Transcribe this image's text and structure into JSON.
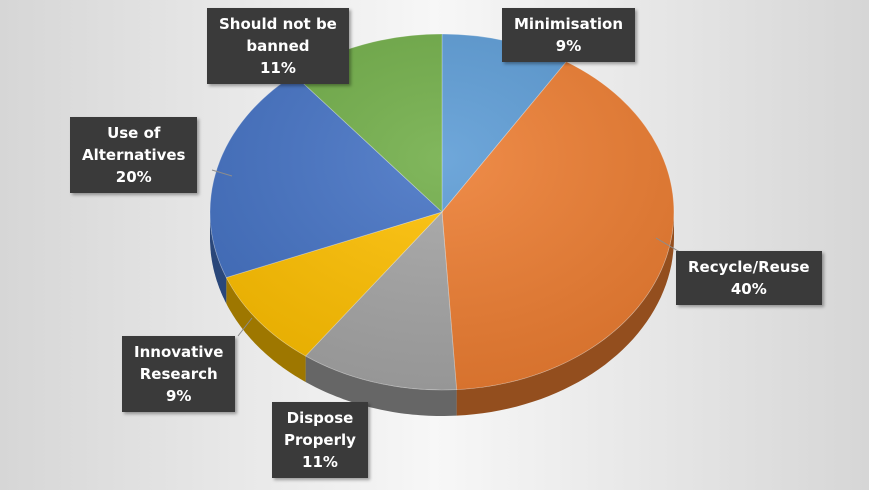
{
  "chart_data": {
    "type": "pie",
    "title": "",
    "colors": {
      "Minimisation": "#5b9bd5",
      "Recycle/Reuse": "#ed7d31",
      "Dispose Properly": "#a5a5a5",
      "Innovative Research": "#ffc000",
      "Use of Alternatives": "#4472c4",
      "Should not be banned": "#70ad47"
    },
    "slices": [
      {
        "key": "Minimisation",
        "label_lines": [
          "Minimisation"
        ],
        "value": 9,
        "value_text": "9%"
      },
      {
        "key": "Recycle/Reuse",
        "label_lines": [
          "Recycle/Reuse"
        ],
        "value": 40,
        "value_text": "40%"
      },
      {
        "key": "Dispose Properly",
        "label_lines": [
          "Dispose",
          "Properly"
        ],
        "value": 11,
        "value_text": "11%"
      },
      {
        "key": "Innovative Research",
        "label_lines": [
          "Innovative",
          "Research"
        ],
        "value": 9,
        "value_text": "9%"
      },
      {
        "key": "Use of Alternatives",
        "label_lines": [
          "Use of",
          "Alternatives"
        ],
        "value": 20,
        "value_text": "20%"
      },
      {
        "key": "Should not be banned",
        "label_lines": [
          "Should not be",
          "banned"
        ],
        "value": 11,
        "value_text": "11%"
      }
    ],
    "legend": "none",
    "data_labels": "callout"
  }
}
